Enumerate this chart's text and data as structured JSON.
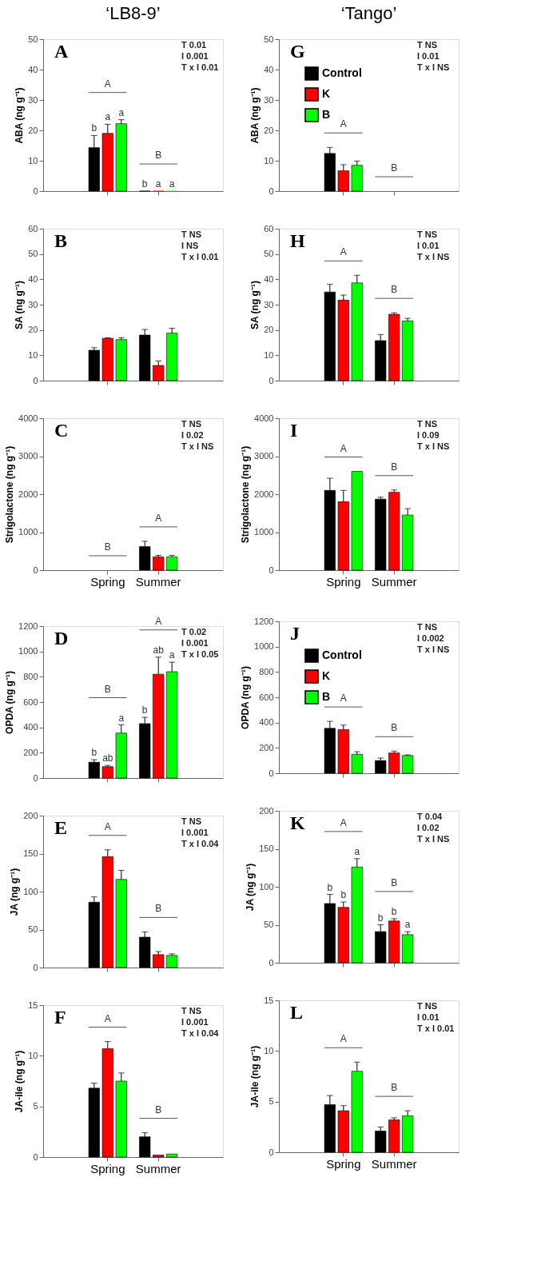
{
  "chart_data": [
    {
      "type": "bar",
      "title": "‘LB8-9’",
      "ylabel": "ABA (ng g⁻¹)",
      "categories": [
        null,
        null
      ],
      "tick_labels": "y",
      "ylim": [
        0,
        50
      ],
      "yticks": [
        0,
        10,
        20,
        30,
        40,
        50
      ],
      "series": [
        {
          "color": "#000000",
          "values": [
            14.3,
            0
          ],
          "errors": [
            4,
            null
          ],
          "value_labels": [
            "b",
            "b"
          ]
        },
        {
          "color": "#ff0000",
          "values": [
            19,
            0
          ],
          "errors": [
            3,
            null
          ],
          "value_labels": [
            "a",
            "a"
          ]
        },
        {
          "color": "#00ff00",
          "values": [
            22.2,
            0
          ],
          "errors": [
            1.3,
            null
          ],
          "value_labels": [
            "a",
            "a"
          ]
        }
      ],
      "annotations": [
        "A",
        "T 0.01",
        "I 0.001",
        "T x I 0.01",
        "A",
        "B"
      ]
    },
    {
      "type": "bar",
      "ylabel": "SA (ng g⁻¹)",
      "categories": [
        null,
        null
      ],
      "tick_labels": "y",
      "ylim": [
        0,
        60
      ],
      "yticks": [
        0,
        10,
        20,
        30,
        40,
        50,
        60
      ],
      "series": [
        {
          "color": "#000000",
          "values": [
            12,
            18
          ],
          "errors": [
            1,
            2.2
          ]
        },
        {
          "color": "#ff0000",
          "values": [
            16.7,
            6
          ],
          "errors": [
            0.2,
            1.8
          ]
        },
        {
          "color": "#00ff00",
          "values": [
            16.2,
            18.8
          ],
          "errors": [
            0.7,
            1.9
          ]
        }
      ],
      "annotations": [
        "B",
        "T NS",
        "I NS",
        "T x I 0.01"
      ]
    },
    {
      "type": "bar",
      "ylabel": "Strigolactone (ng g⁻¹)",
      "categories": [
        "Spring",
        "Summer"
      ],
      "ylim": [
        0,
        4000
      ],
      "yticks": [
        0,
        1000,
        2000,
        3000,
        4000
      ],
      "series": [
        {
          "color": "#000000",
          "values": [
            null,
            620
          ],
          "errors": [
            null,
            140
          ]
        },
        {
          "color": "#ff0000",
          "values": [
            null,
            350
          ],
          "errors": [
            null,
            40
          ]
        },
        {
          "color": "#00ff00",
          "values": [
            null,
            350
          ],
          "errors": [
            null,
            40
          ]
        }
      ],
      "annotations": [
        "C",
        "T NS",
        "I 0.02",
        "T x I NS",
        "B",
        "A"
      ]
    },
    {
      "type": "bar",
      "ylabel": "OPDA (ng g⁻¹)",
      "categories": [
        null,
        null
      ],
      "tick_labels": "y",
      "ylim": [
        0,
        1200
      ],
      "yticks": [
        0,
        200,
        400,
        600,
        800,
        1000,
        1200
      ],
      "series": [
        {
          "color": "#000000",
          "values": [
            125,
            430
          ],
          "errors": [
            20,
            50
          ],
          "value_labels": [
            "b",
            "b"
          ]
        },
        {
          "color": "#ff0000",
          "values": [
            90,
            820
          ],
          "errors": [
            10,
            135
          ],
          "value_labels": [
            "ab",
            "ab"
          ]
        },
        {
          "color": "#00ff00",
          "values": [
            355,
            840
          ],
          "errors": [
            65,
            75
          ],
          "value_labels": [
            "a",
            "a"
          ]
        }
      ],
      "annotations": [
        "D",
        "T 0.02",
        "I 0.001",
        "T x I 0.05",
        "B",
        "A"
      ]
    },
    {
      "type": "bar",
      "ylabel": "JA (ng g⁻¹)",
      "categories": [
        null,
        null
      ],
      "tick_labels": "y",
      "ylim": [
        0,
        200
      ],
      "yticks": [
        0,
        50,
        100,
        150,
        200
      ],
      "series": [
        {
          "color": "#000000",
          "values": [
            86,
            40
          ],
          "errors": [
            7,
            7
          ]
        },
        {
          "color": "#ff0000",
          "values": [
            146,
            17
          ],
          "errors": [
            9,
            4
          ]
        },
        {
          "color": "#00ff00",
          "values": [
            116,
            16
          ],
          "errors": [
            12,
            2
          ]
        }
      ],
      "annotations": [
        "E",
        "T NS",
        "I 0.001",
        "T x I 0.04",
        "A",
        "B"
      ]
    },
    {
      "type": "bar",
      "ylabel": "JA-ile (ng g⁻¹)",
      "categories": [
        "Spring",
        "Summer"
      ],
      "ylim": [
        0,
        15
      ],
      "yticks": [
        0,
        5,
        10,
        15
      ],
      "series": [
        {
          "color": "#000000",
          "values": [
            6.8,
            2
          ],
          "errors": [
            0.5,
            0.4
          ]
        },
        {
          "color": "#ff0000",
          "values": [
            10.7,
            0.2
          ],
          "errors": [
            0.7,
            null
          ]
        },
        {
          "color": "#00ff00",
          "values": [
            7.5,
            0.3
          ],
          "errors": [
            0.8,
            null
          ]
        }
      ],
      "annotations": [
        "F",
        "T NS",
        "I 0.001",
        "T x I 0.04",
        "A",
        "B"
      ]
    },
    {
      "type": "bar",
      "title": "‘Tango’",
      "ylabel": "ABA (ng g⁻¹)",
      "categories": [
        null,
        null
      ],
      "tick_labels": "y",
      "ylim": [
        0,
        50
      ],
      "yticks": [
        0,
        10,
        20,
        30,
        40,
        50
      ],
      "legend": "top left",
      "series": [
        {
          "name": "Control",
          "color": "#000000",
          "values": [
            12.4,
            null
          ],
          "errors": [
            2,
            null
          ]
        },
        {
          "name": "K",
          "color": "#ff0000",
          "values": [
            6.7,
            null
          ],
          "errors": [
            2,
            null
          ]
        },
        {
          "name": "B",
          "color": "#00ff00",
          "values": [
            8.5,
            null
          ],
          "errors": [
            1.4,
            null
          ]
        }
      ],
      "annotations": [
        "G",
        "T NS",
        "I 0.01",
        "T x I NS",
        "A",
        "B"
      ]
    },
    {
      "type": "bar",
      "ylabel": "SA (ng g⁻¹)",
      "categories": [
        null,
        null
      ],
      "tick_labels": "y",
      "ylim": [
        0,
        60
      ],
      "yticks": [
        0,
        10,
        20,
        30,
        40,
        50,
        60
      ],
      "series": [
        {
          "color": "#000000",
          "values": [
            35,
            15.8
          ],
          "errors": [
            3,
            2.4
          ]
        },
        {
          "color": "#ff0000",
          "values": [
            31.8,
            26.2
          ],
          "errors": [
            2,
            0.6
          ]
        },
        {
          "color": "#00ff00",
          "values": [
            38.6,
            23.6
          ],
          "errors": [
            3,
            1
          ]
        }
      ],
      "annotations": [
        "H",
        "T NS",
        "I 0.01",
        "T x I NS",
        "A",
        "B"
      ]
    },
    {
      "type": "bar",
      "ylabel": "Strigolactone (ng g⁻¹)",
      "categories": [
        "Spring",
        "Summer"
      ],
      "ylim": [
        0,
        4000
      ],
      "yticks": [
        0,
        1000,
        2000,
        3000,
        4000
      ],
      "series": [
        {
          "color": "#000000",
          "values": [
            2100,
            1870
          ],
          "errors": [
            320,
            50
          ]
        },
        {
          "color": "#ff0000",
          "values": [
            1800,
            2050
          ],
          "errors": [
            300,
            60
          ]
        },
        {
          "color": "#00ff00",
          "values": [
            2600,
            1450
          ],
          "errors": [
            null,
            170
          ]
        }
      ],
      "annotations": [
        "I",
        "T NS",
        "I 0.09",
        "T x I NS",
        "A",
        "B"
      ]
    },
    {
      "type": "bar",
      "ylabel": "OPDA (ng g⁻¹)",
      "categories": [
        null,
        null
      ],
      "tick_labels": "y",
      "ylim": [
        0,
        1200
      ],
      "yticks": [
        0,
        200,
        400,
        600,
        800,
        1000,
        1200
      ],
      "legend": "top left",
      "series": [
        {
          "name": "Control",
          "color": "#000000",
          "values": [
            355,
            100
          ],
          "errors": [
            55,
            20
          ]
        },
        {
          "name": "K",
          "color": "#ff0000",
          "values": [
            345,
            160
          ],
          "errors": [
            35,
            15
          ]
        },
        {
          "name": "B",
          "color": "#00ff00",
          "values": [
            150,
            140
          ],
          "errors": [
            20,
            5
          ]
        }
      ],
      "annotations": [
        "J",
        "T NS",
        "I 0.002",
        "T x I NS",
        "A",
        "B"
      ]
    },
    {
      "type": "bar",
      "ylabel": "JA (ng g⁻¹)",
      "categories": [
        null,
        null
      ],
      "tick_labels": "y",
      "ylim": [
        0,
        200
      ],
      "yticks": [
        0,
        50,
        100,
        150,
        200
      ],
      "series": [
        {
          "color": "#000000",
          "values": [
            78,
            41
          ],
          "errors": [
            12,
            9
          ],
          "value_labels": [
            "b",
            "b"
          ]
        },
        {
          "color": "#ff0000",
          "values": [
            73,
            55
          ],
          "errors": [
            7,
            3
          ],
          "value_labels": [
            "b",
            "b"
          ]
        },
        {
          "color": "#00ff00",
          "values": [
            126,
            37
          ],
          "errors": [
            11,
            4
          ],
          "value_labels": [
            "a",
            "a"
          ]
        }
      ],
      "annotations": [
        "K",
        "T 0.04",
        "I 0.02",
        "T x I NS",
        "A",
        "B"
      ]
    },
    {
      "type": "bar",
      "ylabel": "JA-ile (ng g⁻¹)",
      "categories": [
        "Spring",
        "Summer"
      ],
      "ylim": [
        0,
        15
      ],
      "yticks": [
        0,
        5,
        10,
        15
      ],
      "series": [
        {
          "color": "#000000",
          "values": [
            4.7,
            2.1
          ],
          "errors": [
            0.9,
            0.4
          ]
        },
        {
          "color": "#ff0000",
          "values": [
            4.1,
            3.2
          ],
          "errors": [
            0.5,
            0.2
          ]
        },
        {
          "color": "#00ff00",
          "values": [
            8,
            3.6
          ],
          "errors": [
            0.9,
            0.5
          ]
        }
      ],
      "annotations": [
        "L",
        "T NS",
        "I 0.01",
        "T x I 0.01",
        "A",
        "B"
      ]
    }
  ]
}
